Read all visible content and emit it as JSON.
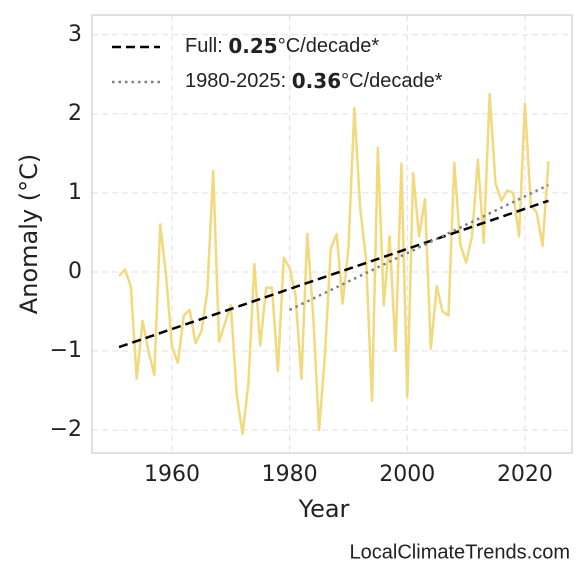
{
  "chart_data": {
    "type": "line",
    "x_label": "Year",
    "y_label": "Anomaly (°C)",
    "source": "LocalClimateTrends.com",
    "x": [
      1951,
      1952,
      1953,
      1954,
      1955,
      1956,
      1957,
      1958,
      1959,
      1960,
      1961,
      1962,
      1963,
      1964,
      1965,
      1966,
      1967,
      1968,
      1969,
      1970,
      1971,
      1972,
      1973,
      1974,
      1975,
      1976,
      1977,
      1978,
      1979,
      1980,
      1981,
      1982,
      1983,
      1984,
      1985,
      1986,
      1987,
      1988,
      1989,
      1990,
      1991,
      1992,
      1993,
      1994,
      1995,
      1996,
      1997,
      1998,
      1999,
      2000,
      2001,
      2002,
      2003,
      2004,
      2005,
      2006,
      2007,
      2008,
      2009,
      2010,
      2011,
      2012,
      2013,
      2014,
      2015,
      2016,
      2017,
      2018,
      2019,
      2020,
      2021,
      2022,
      2023,
      2024
    ],
    "values": [
      -0.05,
      0.03,
      -0.18,
      -1.35,
      -0.62,
      -1.0,
      -1.3,
      0.6,
      -0.05,
      -0.95,
      -1.15,
      -0.55,
      -0.48,
      -0.9,
      -0.75,
      -0.25,
      1.28,
      -0.88,
      -0.65,
      -0.42,
      -1.55,
      -2.05,
      -1.4,
      0.1,
      -0.93,
      -0.2,
      -0.2,
      -1.25,
      0.18,
      0.05,
      -0.3,
      -1.35,
      0.48,
      -0.55,
      -2.0,
      -1.05,
      0.3,
      0.48,
      -0.4,
      0.3,
      2.07,
      0.8,
      0.15,
      -1.63,
      1.57,
      -0.42,
      0.45,
      -1.0,
      1.37,
      -1.58,
      1.25,
      0.45,
      0.92,
      -0.97,
      -0.18,
      -0.5,
      -0.55,
      1.38,
      0.35,
      0.12,
      0.45,
      1.42,
      0.37,
      2.25,
      1.12,
      0.9,
      1.03,
      1.0,
      0.45,
      2.13,
      0.85,
      0.75,
      0.33,
      1.4
    ],
    "color": "#f2d97c",
    "trends": [
      {
        "legend_label": [
          "Full: ",
          0.25,
          "°C/decade*"
        ],
        "x": [
          1951,
          2024
        ],
        "values": [
          -0.95,
          0.9
        ],
        "color": "#000000",
        "dash": "dashed"
      },
      {
        "legend_label": [
          "1980-2025: ",
          0.36,
          "°C/decade*"
        ],
        "x": [
          1980,
          2024
        ],
        "values": [
          -0.48,
          1.1
        ],
        "color": "#808080",
        "dash": "dotted"
      }
    ],
    "xlim": [
      1946.4,
      2028
    ],
    "ylim": [
      -2.29,
      3.25
    ],
    "xticks": [
      1960,
      1980,
      2000,
      2020
    ],
    "yticks": [
      {
        "value": -2,
        "label": "−2"
      },
      {
        "value": -1,
        "label": "−1"
      },
      0,
      1,
      2,
      3
    ],
    "grid": true,
    "legend": "upper left"
  }
}
